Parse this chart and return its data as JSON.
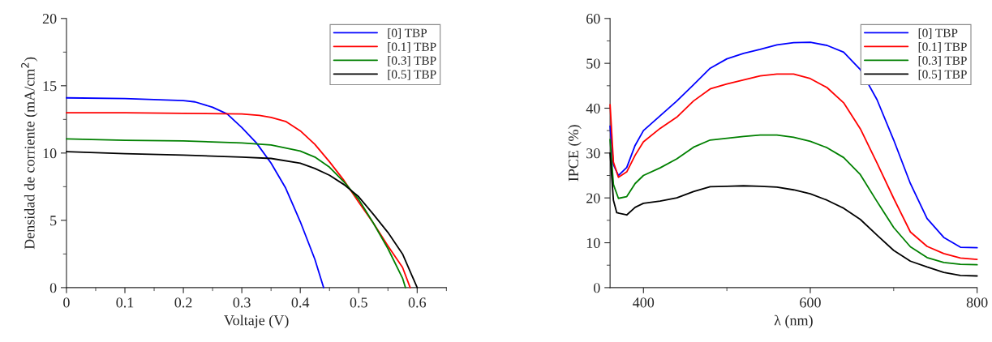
{
  "chart_data": [
    {
      "type": "line",
      "xlabel": "Voltaje (V)",
      "ylabel": "Densidad de corriente (mA/cm$^{2}$)",
      "legend": "top right",
      "grid": false,
      "xlim": [
        0,
        0.65
      ],
      "xticks": [
        0,
        {
          "value": 0.05,
          "label": null
        },
        0.1,
        {
          "value": 0.15,
          "label": null
        },
        0.2,
        {
          "value": 0.25,
          "label": null
        },
        0.3,
        {
          "value": 0.35,
          "label": null
        },
        0.4,
        {
          "value": 0.45,
          "label": null
        },
        0.5,
        {
          "value": 0.55,
          "label": null
        },
        0.6,
        {
          "value": 0.65,
          "label": null
        }
      ],
      "ylim": [
        0,
        20
      ],
      "yticks": [
        0,
        {
          "value": 2.5,
          "label": null
        },
        5,
        {
          "value": 7.5,
          "label": null
        },
        10,
        {
          "value": 12.5,
          "label": null
        },
        15,
        {
          "value": 17.5,
          "label": null
        },
        20
      ],
      "series": [
        {
          "name": "[0] TBP",
          "color": "#0000ff",
          "x": [
            0,
            0.1,
            0.2,
            0.22,
            0.25,
            0.275,
            0.3,
            0.325,
            0.35,
            0.375,
            0.4,
            0.425,
            0.44
          ],
          "values": [
            14.1,
            14.05,
            13.9,
            13.8,
            13.4,
            12.9,
            11.9,
            10.75,
            9.25,
            7.4,
            4.9,
            2.1,
            0
          ]
        },
        {
          "name": "[0.1] TBP",
          "color": "#ff0000",
          "x": [
            0,
            0.1,
            0.2,
            0.3,
            0.33,
            0.35,
            0.375,
            0.4,
            0.425,
            0.45,
            0.475,
            0.5,
            0.525,
            0.55,
            0.575,
            0.588
          ],
          "values": [
            13.0,
            13.0,
            12.95,
            12.9,
            12.8,
            12.65,
            12.35,
            11.65,
            10.65,
            9.35,
            7.95,
            6.35,
            4.8,
            3.1,
            1.5,
            0
          ]
        },
        {
          "name": "[0.3] TBP",
          "color": "#008000",
          "x": [
            0,
            0.1,
            0.2,
            0.3,
            0.35,
            0.4,
            0.425,
            0.45,
            0.475,
            0.5,
            0.525,
            0.55,
            0.575,
            0.58
          ],
          "values": [
            11.05,
            10.95,
            10.9,
            10.75,
            10.6,
            10.15,
            9.7,
            8.95,
            7.85,
            6.55,
            4.8,
            2.9,
            0.7,
            0
          ]
        },
        {
          "name": "[0.5] TBP",
          "color": "#000000",
          "x": [
            0,
            0.1,
            0.2,
            0.3,
            0.35,
            0.4,
            0.425,
            0.45,
            0.475,
            0.5,
            0.525,
            0.55,
            0.575,
            0.6
          ],
          "values": [
            10.1,
            9.95,
            9.85,
            9.7,
            9.6,
            9.25,
            8.85,
            8.35,
            7.65,
            6.75,
            5.45,
            4.1,
            2.5,
            0
          ]
        }
      ]
    },
    {
      "type": "line",
      "xlabel": "λ (nm)",
      "ylabel": "IPCE (%)",
      "legend": "top right",
      "grid": false,
      "xlim": [
        360,
        800
      ],
      "xticks": [
        400,
        {
          "value": 500,
          "label": null
        },
        600,
        {
          "value": 700,
          "label": null
        },
        800
      ],
      "ylim": [
        0,
        60
      ],
      "yticks": [
        0,
        {
          "value": 5,
          "label": null
        },
        10,
        {
          "value": 15,
          "label": null
        },
        20,
        {
          "value": 25,
          "label": null
        },
        30,
        {
          "value": 35,
          "label": null
        },
        40,
        {
          "value": 45,
          "label": null
        },
        50,
        {
          "value": 55,
          "label": null
        },
        60
      ],
      "series": [
        {
          "name": "[0] TBP",
          "color": "#0000ff",
          "x": [
            360,
            364,
            370,
            380,
            390,
            400,
            420,
            440,
            460,
            480,
            500,
            520,
            540,
            560,
            580,
            600,
            620,
            640,
            660,
            680,
            700,
            720,
            740,
            760,
            780,
            800
          ],
          "values": [
            36,
            27.4,
            25,
            26.8,
            31.7,
            35,
            38.3,
            41.6,
            45.2,
            48.9,
            51,
            52.2,
            53.1,
            54.1,
            54.6,
            54.7,
            54,
            52.5,
            48.6,
            41.9,
            32.9,
            23.2,
            15.4,
            11.2,
            9,
            8.9
          ]
        },
        {
          "name": "[0.1] TBP",
          "color": "#ff0000",
          "x": [
            360,
            364,
            370,
            380,
            390,
            400,
            420,
            440,
            460,
            480,
            500,
            520,
            540,
            560,
            580,
            600,
            620,
            640,
            660,
            680,
            700,
            720,
            740,
            760,
            780,
            800
          ],
          "values": [
            40.8,
            28,
            24.6,
            25.8,
            29.5,
            32.5,
            35.5,
            38,
            41.6,
            44.3,
            45.4,
            46.3,
            47.2,
            47.6,
            47.6,
            46.6,
            44.6,
            41.2,
            35.4,
            27.8,
            19.9,
            12.4,
            9.2,
            7.6,
            6.6,
            6.3
          ]
        },
        {
          "name": "[0.3] TBP",
          "color": "#008000",
          "x": [
            360,
            364,
            370,
            380,
            390,
            400,
            420,
            440,
            460,
            480,
            500,
            520,
            540,
            560,
            580,
            600,
            620,
            640,
            660,
            680,
            700,
            720,
            740,
            760,
            780,
            800
          ],
          "values": [
            33,
            23,
            19.9,
            20.3,
            23.2,
            25,
            26.7,
            28.7,
            31.3,
            32.9,
            33.3,
            33.7,
            34,
            34,
            33.5,
            32.6,
            31.2,
            29,
            25.2,
            19.2,
            13.4,
            9.1,
            6.7,
            5.6,
            5.2,
            5.1
          ]
        },
        {
          "name": "[0.5] TBP",
          "color": "#000000",
          "x": [
            360,
            364,
            368,
            380,
            390,
            400,
            420,
            440,
            460,
            480,
            500,
            520,
            540,
            560,
            580,
            600,
            620,
            640,
            660,
            680,
            700,
            720,
            740,
            760,
            780,
            800
          ],
          "values": [
            30,
            19.5,
            16.7,
            16.2,
            17.9,
            18.8,
            19.3,
            20,
            21.4,
            22.5,
            22.6,
            22.7,
            22.6,
            22.4,
            21.8,
            20.9,
            19.5,
            17.7,
            15.2,
            11.7,
            8.3,
            5.9,
            4.6,
            3.4,
            2.7,
            2.6
          ]
        }
      ]
    }
  ]
}
